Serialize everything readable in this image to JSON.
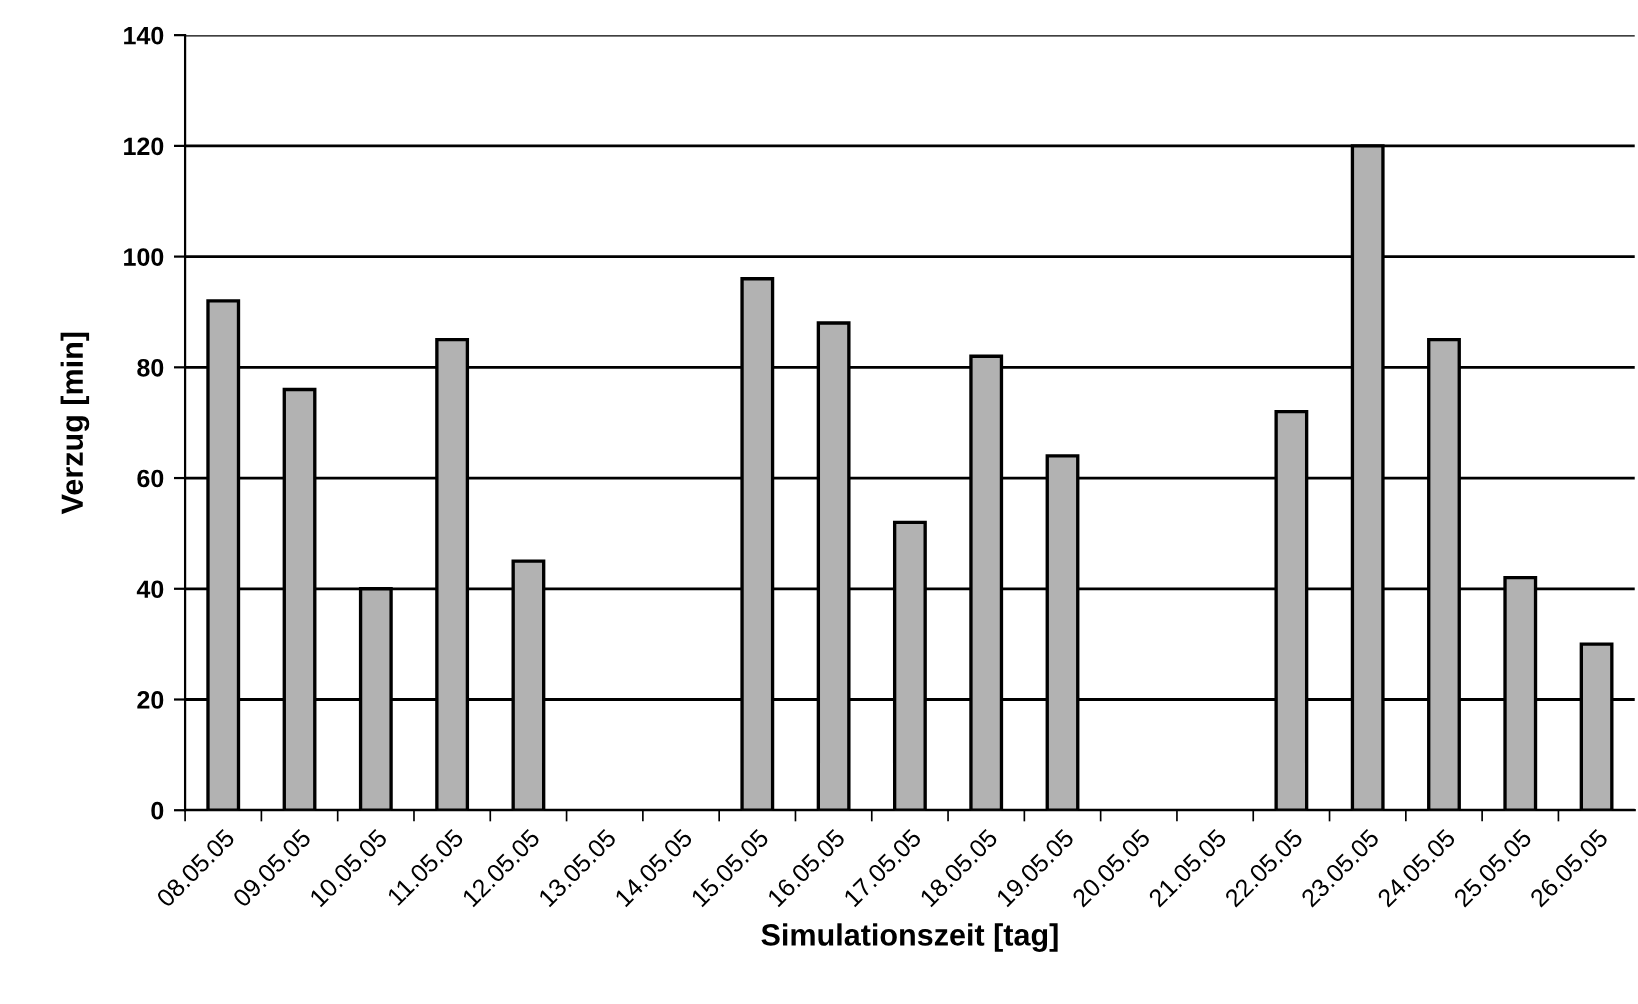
{
  "chart_data": {
    "type": "bar",
    "xlabel": "Simulationszeit [tag]",
    "ylabel": "Verzug [min]",
    "categories": [
      "08.05.05",
      "09.05.05",
      "10.05.05",
      "11.05.05",
      "12.05.05",
      "13.05.05",
      "14.05.05",
      "15.05.05",
      "16.05.05",
      "17.05.05",
      "18.05.05",
      "19.05.05",
      "20.05.05",
      "21.05.05",
      "22.05.05",
      "23.05.05",
      "24.05.05",
      "25.05.05",
      "26.05.05"
    ],
    "values": [
      92,
      76,
      40,
      85,
      45,
      null,
      null,
      96,
      88,
      52,
      82,
      64,
      null,
      null,
      72,
      120,
      85,
      42,
      30
    ],
    "color": "#b2b2b2",
    "ylim": [
      0,
      140
    ],
    "yticks": [
      0,
      20,
      40,
      60,
      80,
      100,
      120,
      140
    ],
    "grid": "y",
    "legend": false
  }
}
